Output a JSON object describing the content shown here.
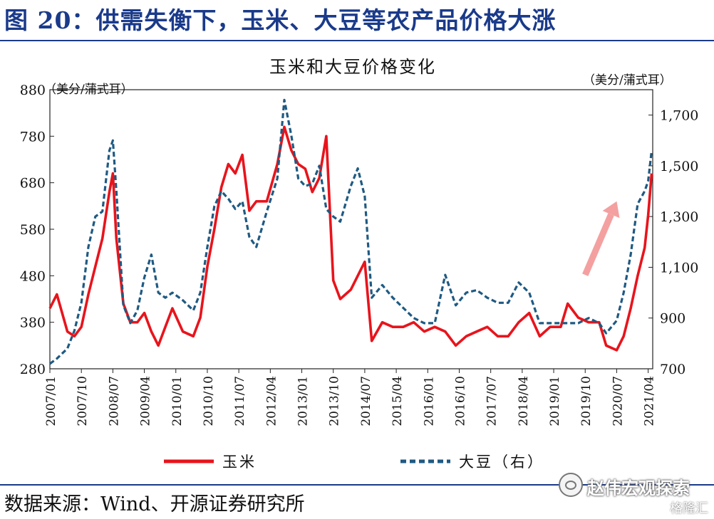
{
  "figure_title": "图 20：供需失衡下，玉米、大豆等农产品价格大涨",
  "source_note": "数据来源：Wind、开源证券研究所",
  "watermark": "赵伟宏观探索",
  "watermark_logo_icon": "wechat-icon",
  "watermark_small": "格隆汇",
  "colors": {
    "title": "#1a3a8a",
    "corn": "#e8141c",
    "soy": "#1f5a82",
    "arrow": "#f4a0a0"
  },
  "chart_data": {
    "type": "line",
    "title": "玉米和大豆价格变化",
    "left_unit": "（美分/蒲式耳）",
    "right_unit": "（美分/蒲式耳）",
    "left_axis": {
      "ylim": [
        280,
        880
      ],
      "ticks": [
        "880",
        "780",
        "680",
        "580",
        "480",
        "380",
        "280"
      ]
    },
    "right_axis": {
      "ylim": [
        700,
        1800
      ],
      "ticks": [
        "1,700",
        "1,500",
        "1,300",
        "1,100",
        "900",
        "700"
      ]
    },
    "x_ticks": [
      "2007/01",
      "2007/10",
      "2008/07",
      "2009/04",
      "2010/01",
      "2010/10",
      "2011/07",
      "2012/04",
      "2013/01",
      "2013/10",
      "2014/07",
      "2015/04",
      "2016/01",
      "2016/10",
      "2017/07",
      "2018/04",
      "2019/01",
      "2019/10",
      "2020/07",
      "2021/04"
    ],
    "series": [
      {
        "name": "玉米",
        "axis": "left",
        "style": "solid",
        "x": [
          "2007/01",
          "2007/03",
          "2007/06",
          "2007/08",
          "2007/10",
          "2007/12",
          "2008/02",
          "2008/04",
          "2008/06",
          "2008/07",
          "2008/08",
          "2008/10",
          "2008/12",
          "2009/02",
          "2009/04",
          "2009/06",
          "2009/08",
          "2009/10",
          "2009/12",
          "2010/03",
          "2010/06",
          "2010/08",
          "2010/10",
          "2010/12",
          "2011/02",
          "2011/04",
          "2011/06",
          "2011/08",
          "2011/10",
          "2011/12",
          "2012/03",
          "2012/06",
          "2012/08",
          "2012/10",
          "2012/12",
          "2013/02",
          "2013/04",
          "2013/06",
          "2013/08",
          "2013/10",
          "2013/12",
          "2014/03",
          "2014/05",
          "2014/07",
          "2014/09",
          "2014/12",
          "2015/03",
          "2015/06",
          "2015/09",
          "2015/12",
          "2016/03",
          "2016/06",
          "2016/09",
          "2016/12",
          "2017/03",
          "2017/06",
          "2017/09",
          "2017/12",
          "2018/03",
          "2018/06",
          "2018/09",
          "2018/12",
          "2019/03",
          "2019/05",
          "2019/08",
          "2019/11",
          "2020/02",
          "2020/04",
          "2020/07",
          "2020/09",
          "2020/11",
          "2021/01",
          "2021/03",
          "2021/04",
          "2021/05"
        ],
        "values": [
          410,
          440,
          360,
          350,
          370,
          440,
          500,
          560,
          660,
          700,
          560,
          420,
          380,
          380,
          400,
          360,
          330,
          370,
          410,
          360,
          350,
          390,
          500,
          580,
          670,
          720,
          700,
          740,
          620,
          640,
          640,
          720,
          800,
          750,
          720,
          710,
          660,
          690,
          780,
          470,
          430,
          450,
          480,
          510,
          340,
          380,
          370,
          370,
          380,
          360,
          370,
          360,
          330,
          350,
          360,
          370,
          350,
          350,
          380,
          400,
          350,
          370,
          370,
          420,
          390,
          380,
          380,
          330,
          320,
          350,
          410,
          480,
          540,
          610,
          700
        ]
      },
      {
        "name": "大豆（右）",
        "axis": "right",
        "style": "dashed",
        "x": [
          "2007/01",
          "2007/03",
          "2007/06",
          "2007/08",
          "2007/10",
          "2007/12",
          "2008/02",
          "2008/04",
          "2008/06",
          "2008/07",
          "2008/08",
          "2008/10",
          "2008/12",
          "2009/02",
          "2009/04",
          "2009/06",
          "2009/08",
          "2009/10",
          "2009/12",
          "2010/03",
          "2010/06",
          "2010/08",
          "2010/10",
          "2010/12",
          "2011/02",
          "2011/04",
          "2011/06",
          "2011/08",
          "2011/10",
          "2011/12",
          "2012/03",
          "2012/06",
          "2012/08",
          "2012/10",
          "2012/12",
          "2013/02",
          "2013/04",
          "2013/06",
          "2013/08",
          "2013/10",
          "2013/12",
          "2014/03",
          "2014/05",
          "2014/07",
          "2014/09",
          "2014/12",
          "2015/03",
          "2015/06",
          "2015/09",
          "2015/12",
          "2016/03",
          "2016/06",
          "2016/09",
          "2016/12",
          "2017/03",
          "2017/06",
          "2017/09",
          "2017/12",
          "2018/03",
          "2018/06",
          "2018/09",
          "2018/12",
          "2019/03",
          "2019/05",
          "2019/08",
          "2019/11",
          "2020/02",
          "2020/04",
          "2020/07",
          "2020/09",
          "2020/11",
          "2021/01",
          "2021/03",
          "2021/04",
          "2021/05"
        ],
        "values": [
          720,
          740,
          780,
          850,
          960,
          1180,
          1300,
          1320,
          1560,
          1600,
          1400,
          950,
          880,
          930,
          1060,
          1150,
          1000,
          980,
          1000,
          970,
          930,
          1000,
          1180,
          1340,
          1400,
          1370,
          1330,
          1360,
          1220,
          1180,
          1320,
          1450,
          1760,
          1620,
          1450,
          1420,
          1430,
          1500,
          1330,
          1300,
          1280,
          1420,
          1490,
          1380,
          980,
          1030,
          980,
          940,
          900,
          880,
          880,
          1070,
          950,
          1000,
          1010,
          980,
          960,
          960,
          1040,
          1000,
          880,
          880,
          880,
          880,
          880,
          900,
          880,
          840,
          890,
          1000,
          1150,
          1350,
          1400,
          1440,
          1560
        ]
      }
    ],
    "arrow": {
      "from": {
        "x": "2019/10",
        "y": 1070
      },
      "to": {
        "x": "2020/07",
        "y": 1360
      }
    },
    "legend": {
      "placement": "bottom",
      "entries": [
        "玉米",
        "大豆（右）"
      ]
    }
  }
}
